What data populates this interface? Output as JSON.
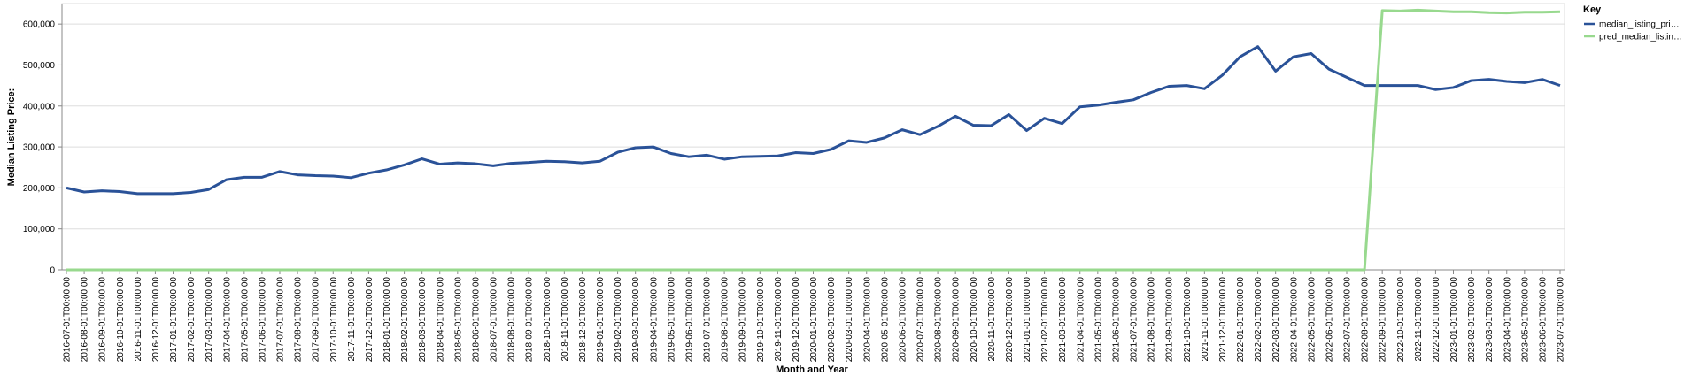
{
  "chart_data": {
    "type": "line",
    "x_label": "Month and Year",
    "y_label": "Median Listing Price:",
    "legend_title": "Key",
    "legend_position": "right",
    "grid": true,
    "categories": [
      "2016-07-01T00:00:00",
      "2016-08-01T00:00:00",
      "2016-09-01T00:00:00",
      "2016-10-01T00:00:00",
      "2016-11-01T00:00:00",
      "2016-12-01T00:00:00",
      "2017-01-01T00:00:00",
      "2017-02-01T00:00:00",
      "2017-03-01T00:00:00",
      "2017-04-01T00:00:00",
      "2017-05-01T00:00:00",
      "2017-06-01T00:00:00",
      "2017-07-01T00:00:00",
      "2017-08-01T00:00:00",
      "2017-09-01T00:00:00",
      "2017-10-01T00:00:00",
      "2017-11-01T00:00:00",
      "2017-12-01T00:00:00",
      "2018-01-01T00:00:00",
      "2018-02-01T00:00:00",
      "2018-03-01T00:00:00",
      "2018-04-01T00:00:00",
      "2018-05-01T00:00:00",
      "2018-06-01T00:00:00",
      "2018-07-01T00:00:00",
      "2018-08-01T00:00:00",
      "2018-09-01T00:00:00",
      "2018-10-01T00:00:00",
      "2018-11-01T00:00:00",
      "2018-12-01T00:00:00",
      "2019-01-01T00:00:00",
      "2019-02-01T00:00:00",
      "2019-03-01T00:00:00",
      "2019-04-01T00:00:00",
      "2019-05-01T00:00:00",
      "2019-06-01T00:00:00",
      "2019-07-01T00:00:00",
      "2019-08-01T00:00:00",
      "2019-09-01T00:00:00",
      "2019-10-01T00:00:00",
      "2019-11-01T00:00:00",
      "2019-12-01T00:00:00",
      "2020-01-01T00:00:00",
      "2020-02-01T00:00:00",
      "2020-03-01T00:00:00",
      "2020-04-01T00:00:00",
      "2020-05-01T00:00:00",
      "2020-06-01T00:00:00",
      "2020-07-01T00:00:00",
      "2020-08-01T00:00:00",
      "2020-09-01T00:00:00",
      "2020-10-01T00:00:00",
      "2020-11-01T00:00:00",
      "2020-12-01T00:00:00",
      "2021-01-01T00:00:00",
      "2021-02-01T00:00:00",
      "2021-03-01T00:00:00",
      "2021-04-01T00:00:00",
      "2021-05-01T00:00:00",
      "2021-06-01T00:00:00",
      "2021-07-01T00:00:00",
      "2021-08-01T00:00:00",
      "2021-09-01T00:00:00",
      "2021-10-01T00:00:00",
      "2021-11-01T00:00:00",
      "2021-12-01T00:00:00",
      "2022-01-01T00:00:00",
      "2022-02-01T00:00:00",
      "2022-03-01T00:00:00",
      "2022-04-01T00:00:00",
      "2022-05-01T00:00:00",
      "2022-06-01T00:00:00",
      "2022-07-01T00:00:00",
      "2022-08-01T00:00:00",
      "2022-09-01T00:00:00",
      "2022-10-01T00:00:00",
      "2022-11-01T00:00:00",
      "2022-12-01T00:00:00",
      "2023-01-01T00:00:00",
      "2023-02-01T00:00:00",
      "2023-03-01T00:00:00",
      "2023-04-01T00:00:00",
      "2023-05-01T00:00:00",
      "2023-06-01T00:00:00",
      "2023-07-01T00:00:00"
    ],
    "series": [
      {
        "name": "median_listing_pri…",
        "color": "#2a5298",
        "values": [
          200000,
          190000,
          193000,
          191000,
          186000,
          186000,
          186000,
          189000,
          196000,
          220000,
          226000,
          226000,
          240000,
          232000,
          230000,
          229000,
          225000,
          236000,
          244000,
          256000,
          271000,
          258000,
          261000,
          259000,
          254000,
          260000,
          262000,
          265000,
          264000,
          261000,
          265000,
          287000,
          298000,
          300000,
          284000,
          276000,
          280000,
          270000,
          276000,
          277000,
          278000,
          286000,
          284000,
          294000,
          315000,
          311000,
          322000,
          342000,
          330000,
          350000,
          375000,
          353000,
          352000,
          379000,
          340000,
          370000,
          357000,
          398000,
          402000,
          409000,
          415000,
          433000,
          448000,
          450000,
          442000,
          475000,
          520000,
          545000,
          485000,
          520000,
          528000,
          490000,
          470000,
          450000,
          450000,
          450000,
          450000,
          440000,
          445000,
          462000,
          465000,
          460000,
          457000,
          465000,
          450000
        ]
      },
      {
        "name": "pred_median_listin…",
        "color": "#98d98e",
        "values": [
          0,
          0,
          0,
          0,
          0,
          0,
          0,
          0,
          0,
          0,
          0,
          0,
          0,
          0,
          0,
          0,
          0,
          0,
          0,
          0,
          0,
          0,
          0,
          0,
          0,
          0,
          0,
          0,
          0,
          0,
          0,
          0,
          0,
          0,
          0,
          0,
          0,
          0,
          0,
          0,
          0,
          0,
          0,
          0,
          0,
          0,
          0,
          0,
          0,
          0,
          0,
          0,
          0,
          0,
          0,
          0,
          0,
          0,
          0,
          0,
          0,
          0,
          0,
          0,
          0,
          0,
          0,
          0,
          0,
          0,
          0,
          0,
          0,
          0,
          633000,
          632000,
          634000,
          632000,
          630000,
          630000,
          628000,
          627000,
          629000,
          629000,
          630000
        ]
      }
    ],
    "ylim": [
      0,
      650000
    ],
    "yticks": [
      0,
      {
        "value": 100000,
        "label": "100,000"
      },
      {
        "value": 200000,
        "label": "200,000"
      },
      {
        "value": 300000,
        "label": "300,000"
      },
      {
        "value": 400000,
        "label": "400,000"
      },
      {
        "value": 500000,
        "label": "500,000"
      },
      {
        "value": 600000,
        "label": "600,000"
      }
    ]
  }
}
